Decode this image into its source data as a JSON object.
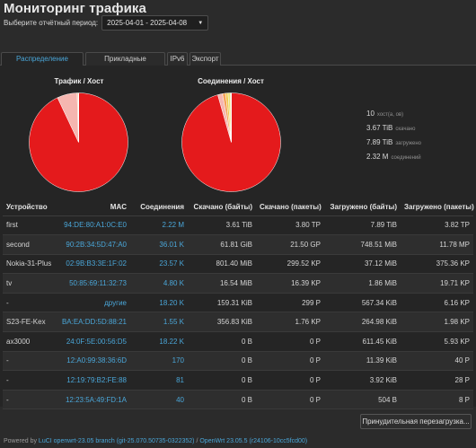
{
  "page": {
    "title": "Мониторинг трафика"
  },
  "period": {
    "label": "Выберите отчётный период:",
    "selected": "2025-04-01 - 2025-04-08"
  },
  "tabs": [
    {
      "label": "Распределение трафика",
      "active": true
    },
    {
      "label": "Прикладные протоколы",
      "active": false
    },
    {
      "label": "IPv6",
      "active": false
    },
    {
      "label": "Экспорт",
      "active": false
    }
  ],
  "charts": {
    "traffic": {
      "title": "Трафик / Хост",
      "chart_data": {
        "type": "pie",
        "title": "Трафик / Хост",
        "categories": [
          "first",
          "second",
          "Nokia-31-Plus",
          "tv",
          "-",
          "S23-FE-Kex",
          "ax3000",
          "-",
          "-",
          "-"
        ],
        "values": [
          11.5,
          0.81,
          0.0384,
          0.0183,
          0.00071,
          0.00061,
          0.0006,
          1.1e-05,
          4e-06,
          5e-07
        ],
        "unit": "TiB"
      }
    },
    "connections": {
      "title": "Соединения / Хост",
      "chart_data": {
        "type": "pie",
        "title": "Соединения / Хост",
        "categories": [
          "first",
          "second",
          "Nokia-31-Plus",
          "-",
          "ax3000",
          "tv",
          "S23-FE-Kex",
          "-",
          "-",
          "-"
        ],
        "values": [
          2220000,
          36010,
          23570,
          18200,
          18220,
          4800,
          1550,
          170,
          81,
          40
        ],
        "unit": "соединений"
      }
    }
  },
  "stats": [
    {
      "value": "10",
      "label": "хост(а, ов)"
    },
    {
      "value": "3.67 TiB",
      "label": "скачано"
    },
    {
      "value": "7.89 TiB",
      "label": "загружено"
    },
    {
      "value": "2.32 M",
      "label": "соединений"
    }
  ],
  "table": {
    "headers": [
      "Устройство",
      "MAC",
      "Соединения",
      "Скачано (байты)",
      "Скачано (пакеты)",
      "Загружено (байты)",
      "Загружено (пакеты)"
    ],
    "rows": [
      [
        "first",
        "94:DE:80:A1:0C:E0",
        "2.22 M",
        "3.61 TiB",
        "3.80 TP",
        "7.89 TiB",
        "3.82 TP"
      ],
      [
        "second",
        "90:2B:34:5D:47:A0",
        "36.01 K",
        "61.81 GiB",
        "21.50 GP",
        "748.51 MiB",
        "11.78 MP"
      ],
      [
        "Nokia-31-Plus",
        "02:9B:B3:3E:1F:02",
        "23.57 K",
        "801.40 MiB",
        "299.52 KP",
        "37.12 MiB",
        "375.36 KP"
      ],
      [
        "tv",
        "50:85:69:11:32:73",
        "4.80 K",
        "16.54 MiB",
        "16.39 KP",
        "1.86 MiB",
        "19.71 KP"
      ],
      [
        "-",
        "другие",
        "18.20 K",
        "159.31 KiB",
        "299 P",
        "567.34 KiB",
        "6.16 KP"
      ],
      [
        "S23-FE-Kex",
        "BA:EA:DD:5D:88:21",
        "1.55 K",
        "356.83 KiB",
        "1.76 KP",
        "264.98 KiB",
        "1.98 KP"
      ],
      [
        "ax3000",
        "24:0F:5E:00:56:D5",
        "18.22 K",
        "0 B",
        "0 P",
        "611.45 KiB",
        "5.93 KP"
      ],
      [
        "-",
        "12:A0:99:38:36:6D",
        "170",
        "0 B",
        "0 P",
        "11.39 KiB",
        "40 P"
      ],
      [
        "-",
        "12:19:79:B2:FE:88",
        "81",
        "0 B",
        "0 P",
        "3.92 KiB",
        "28 P"
      ],
      [
        "-",
        "12:23:5A:49:FD:1A",
        "40",
        "0 B",
        "0 P",
        "504 B",
        "8 P"
      ]
    ]
  },
  "reload_button": "Принудительная перезагрузка...",
  "footer": {
    "prefix": "Powered by",
    "luci": "LuCI openwrt-23.05 branch (git-25.070.50735-0322352)",
    "sep": "/",
    "openwrt": "OpenWrt 23.05.5 (r24106-10cc5fcd00)"
  },
  "colors": {
    "accent": "#4aa6d8",
    "pie_main": "#e41a1c",
    "pie_second": "#f5b6b0",
    "pie_other": "#f2c84b"
  }
}
